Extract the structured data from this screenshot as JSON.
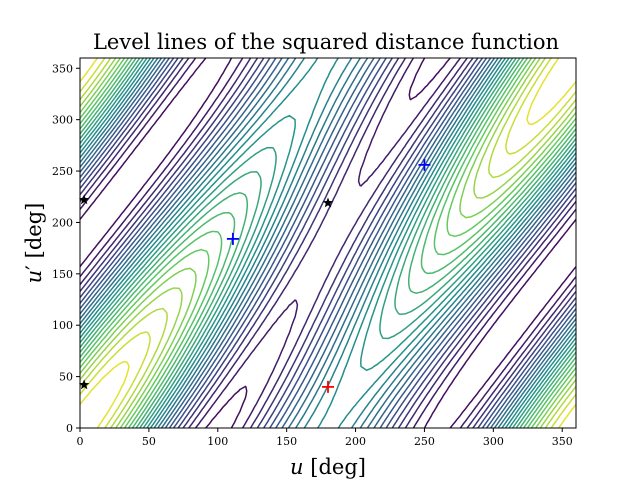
{
  "chart_data": {
    "type": "contour",
    "title": "Level lines of the squared distance function",
    "xlabel": {
      "var": "u",
      "unit": "[deg]"
    },
    "ylabel": {
      "var": "u",
      "prime": "′",
      "unit": "[deg]"
    },
    "xlim": [
      0,
      360
    ],
    "ylim": [
      0,
      360
    ],
    "xticks": [
      0,
      50,
      100,
      150,
      200,
      250,
      300,
      350
    ],
    "yticks": [
      0,
      50,
      100,
      150,
      200,
      250,
      300,
      350
    ],
    "colormap": [
      "#440154",
      "#3b528b",
      "#21918c",
      "#5ec962",
      "#fde725"
    ],
    "levels": 24,
    "markers": [
      {
        "kind": "plus",
        "u": 111,
        "v": 184,
        "color": "#0000ff",
        "name": "minimum-marker-1"
      },
      {
        "kind": "plus",
        "u": 250,
        "v": 256,
        "color": "#0000ff",
        "name": "minimum-marker-2"
      },
      {
        "kind": "plus",
        "u": 180,
        "v": 40,
        "color": "#ff0000",
        "name": "maximum-marker"
      },
      {
        "kind": "star",
        "u": 180,
        "v": 219,
        "color": "#000000",
        "name": "saddle-marker-1"
      },
      {
        "kind": "star",
        "u": 3,
        "v": 222,
        "color": "#000000",
        "name": "saddle-marker-2"
      },
      {
        "kind": "star",
        "u": 3,
        "v": 42,
        "color": "#000000",
        "name": "saddle-marker-3"
      }
    ]
  }
}
